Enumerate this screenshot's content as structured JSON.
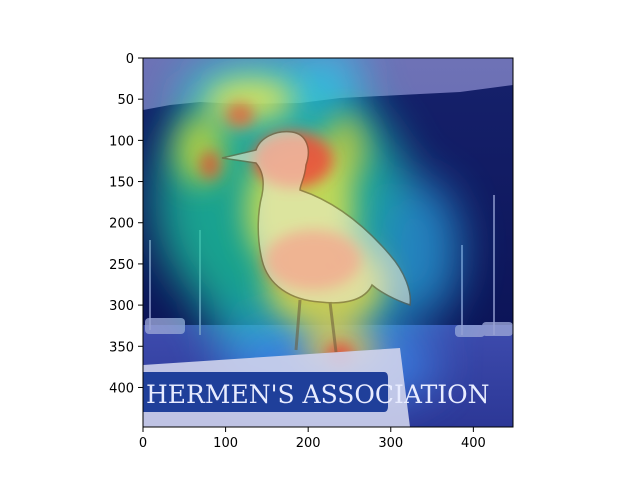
{
  "chart_data": {
    "type": "heatmap",
    "title": "",
    "xlabel": "",
    "ylabel": "",
    "xlim": [
      0,
      448
    ],
    "ylim": [
      448,
      0
    ],
    "x_ticks": [
      0,
      100,
      200,
      300,
      400
    ],
    "y_ticks": [
      0,
      50,
      100,
      150,
      200,
      250,
      300,
      350,
      400
    ],
    "grid": false,
    "colormap": "jet",
    "overlay": "saliency heatmap over photo of a seagull perched on a sign",
    "sign_text": "HERMEN'S ASSOCIATION",
    "hotspots": [
      {
        "x": 180,
        "y": 150,
        "intensity": 1.0
      },
      {
        "x": 195,
        "y": 250,
        "intensity": 1.0
      },
      {
        "x": 150,
        "y": 50,
        "intensity": 0.75
      },
      {
        "x": 240,
        "y": 130,
        "intensity": 0.6
      },
      {
        "x": 80,
        "y": 150,
        "intensity": 0.55
      },
      {
        "x": 240,
        "y": 360,
        "intensity": 0.6
      },
      {
        "x": 110,
        "y": 90,
        "intensity": 0.45
      },
      {
        "x": 330,
        "y": 250,
        "intensity": 0.4
      }
    ]
  }
}
